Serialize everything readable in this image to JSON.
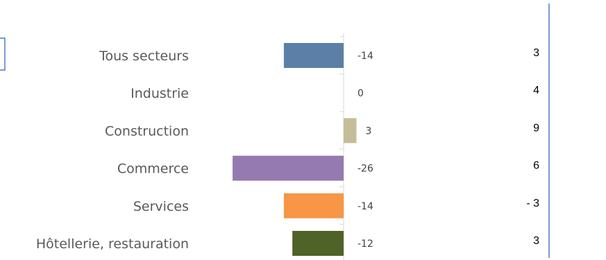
{
  "chart_data": {
    "type": "bar",
    "orientation": "horizontal",
    "categories": [
      "Tous secteurs",
      "Industrie",
      "Construction",
      "Commerce",
      "Services",
      "Hôtellerie, restauration"
    ],
    "values": [
      -14,
      0,
      3,
      -26,
      -14,
      -12
    ],
    "value_labels": [
      "-14",
      "0",
      "3",
      "-26",
      "-14",
      "-12"
    ],
    "colors": [
      "#5b7fa6",
      "#5b7fa6",
      "#c4bd97",
      "#9579b1",
      "#f79646",
      "#4f6228"
    ],
    "side_values": [
      "3",
      "4",
      "9",
      "6",
      "- 3",
      "3"
    ],
    "xlim": [
      -26,
      3
    ],
    "grid": false,
    "legend": "none"
  }
}
